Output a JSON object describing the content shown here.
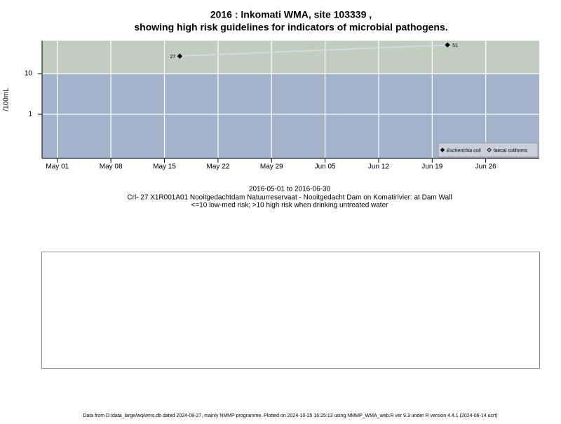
{
  "chart_data": {
    "type": "line",
    "title": "2016 : Inkomati WMA, site 103339 ,",
    "subtitle": "showing high risk guidelines for indicators of microbial pathogens.",
    "y_label": "/100mL",
    "notes": [
      "2016-05-01 to 2016-06-30",
      "Crl- 27 X1R001A01 Nooitgedachtdam Natuurreservaat - Nooitgedacht Dam on Komatirivier: at Dam Wall",
      "<=10 low-med risk; >10 high risk when drinking untreated water"
    ],
    "footer": "Data from D:/data_large/wq/wms.db dated 2024-08-27, mainly NMMP programme. Plotted on 2024-10-25 16:25:13 using NMMP_WMA_web.R ver 9.3 under R version 4.4.1 (2024-06-14 ucrt)",
    "log_y": true,
    "grid": true,
    "threshold": 10,
    "band_colors": {
      "above": "#c2cdc1",
      "below": "#a3b3cc"
    },
    "legend": "bottom-right",
    "xlim": [
      "2016-04-29",
      "2016-07-03"
    ],
    "ylim": [
      0.082,
      65
    ],
    "yticks": [
      1,
      10
    ],
    "xticks": [
      {
        "value": "2016-05-01",
        "label": "May 01"
      },
      {
        "value": "2016-05-08",
        "label": "May 08"
      },
      {
        "value": "2016-05-15",
        "label": "May 15"
      },
      {
        "value": "2016-05-22",
        "label": "May 22"
      },
      {
        "value": "2016-05-29",
        "label": "May 29"
      },
      {
        "value": "2016-06-05",
        "label": "Jun 05"
      },
      {
        "value": "2016-06-12",
        "label": "Jun 12"
      },
      {
        "value": "2016-06-19",
        "label": "Jun 19"
      },
      {
        "value": "2016-06-26",
        "label": "Jun 26"
      }
    ],
    "series": [
      {
        "name": "Escherichia coli",
        "color": "#000000",
        "line_color": "#dddddd",
        "marker": "filled-diamond",
        "x": [
          "2016-05-17",
          "2016-06-21"
        ],
        "values": [
          27,
          51
        ]
      },
      {
        "name": "faecal coliforms",
        "color": "#000000",
        "line_color": "#dddddd",
        "marker": "open-diamond",
        "x": [],
        "values": []
      }
    ]
  }
}
